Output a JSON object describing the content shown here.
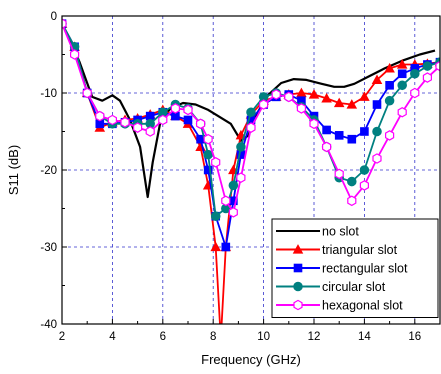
{
  "chart_data": {
    "type": "line",
    "title": "",
    "xlabel": "Frequency (GHz)",
    "ylabel": "S11 (dB)",
    "xlim": [
      2,
      17
    ],
    "ylim": [
      -40,
      0
    ],
    "xticks": [
      2,
      4,
      6,
      8,
      10,
      12,
      14,
      16
    ],
    "yticks": [
      0,
      -10,
      -20,
      -30,
      -40
    ],
    "grid": "dashed blue, vertical at each major x tick, horizontal at each major y tick",
    "legend_position": "bottom-right",
    "series": [
      {
        "name": "no slot",
        "color": "#000000",
        "marker": "none",
        "points": [
          [
            2,
            -1
          ],
          [
            2.3,
            -3
          ],
          [
            2.7,
            -6
          ],
          [
            3.2,
            -10.5
          ],
          [
            3.6,
            -11
          ],
          [
            4,
            -10.3
          ],
          [
            4.3,
            -11
          ],
          [
            4.7,
            -13.5
          ],
          [
            5.1,
            -17
          ],
          [
            5.4,
            -23.5
          ],
          [
            5.6,
            -19
          ],
          [
            5.9,
            -13.8
          ],
          [
            6.3,
            -12
          ],
          [
            6.8,
            -11.3
          ],
          [
            7.3,
            -11.5
          ],
          [
            7.8,
            -12.2
          ],
          [
            8.2,
            -13
          ],
          [
            8.7,
            -14
          ],
          [
            9.1,
            -16.2
          ],
          [
            9.4,
            -15.5
          ],
          [
            9.8,
            -12.3
          ],
          [
            10.2,
            -10.2
          ],
          [
            10.7,
            -8.7
          ],
          [
            11.2,
            -8.2
          ],
          [
            11.7,
            -8.3
          ],
          [
            12.3,
            -8.8
          ],
          [
            12.8,
            -9.2
          ],
          [
            13.2,
            -9.2
          ],
          [
            13.6,
            -8.8
          ],
          [
            14.2,
            -7.8
          ],
          [
            14.8,
            -6.8
          ],
          [
            15.5,
            -5.8
          ],
          [
            16.2,
            -5.0
          ],
          [
            16.8,
            -4.5
          ]
        ]
      },
      {
        "name": "triangular slot",
        "color": "#ff0000",
        "marker": "triangle",
        "points": [
          [
            2,
            -1
          ],
          [
            2.5,
            -4
          ],
          [
            3,
            -10
          ],
          [
            3.5,
            -14.5
          ],
          [
            4,
            -13.8
          ],
          [
            4.5,
            -13.5
          ],
          [
            5,
            -13.3
          ],
          [
            5.5,
            -12.8
          ],
          [
            6,
            -12.2
          ],
          [
            6.5,
            -13
          ],
          [
            7,
            -14
          ],
          [
            7.5,
            -17
          ],
          [
            7.8,
            -22
          ],
          [
            8.1,
            -30
          ],
          [
            8.3,
            -42
          ],
          [
            8.5,
            -30
          ],
          [
            8.8,
            -20
          ],
          [
            9.1,
            -15.5
          ],
          [
            9.5,
            -12.8
          ],
          [
            10,
            -11
          ],
          [
            10.5,
            -10.5
          ],
          [
            11,
            -10.2
          ],
          [
            11.5,
            -10
          ],
          [
            12,
            -10.2
          ],
          [
            12.5,
            -10.7
          ],
          [
            13,
            -11.3
          ],
          [
            13.5,
            -11.5
          ],
          [
            14,
            -10.5
          ],
          [
            14.5,
            -8.3
          ],
          [
            15,
            -6.8
          ],
          [
            15.5,
            -6.3
          ],
          [
            16,
            -6.3
          ],
          [
            16.5,
            -6.2
          ],
          [
            17,
            -6
          ]
        ]
      },
      {
        "name": "rectangular slot",
        "color": "#0000ff",
        "marker": "square",
        "points": [
          [
            2,
            -1
          ],
          [
            2.5,
            -4
          ],
          [
            3,
            -10
          ],
          [
            3.5,
            -14
          ],
          [
            4,
            -14
          ],
          [
            4.5,
            -13.8
          ],
          [
            5,
            -13.5
          ],
          [
            5.5,
            -13
          ],
          [
            6,
            -12.5
          ],
          [
            6.5,
            -13
          ],
          [
            7,
            -13.5
          ],
          [
            7.5,
            -16
          ],
          [
            7.8,
            -20
          ],
          [
            8.1,
            -26
          ],
          [
            8.5,
            -30
          ],
          [
            8.8,
            -24
          ],
          [
            9.1,
            -18
          ],
          [
            9.5,
            -13.5
          ],
          [
            10,
            -11.5
          ],
          [
            10.5,
            -10.5
          ],
          [
            11,
            -10.2
          ],
          [
            11.5,
            -11
          ],
          [
            12,
            -13
          ],
          [
            12.5,
            -14.8
          ],
          [
            13,
            -15.5
          ],
          [
            13.5,
            -16
          ],
          [
            14,
            -15
          ],
          [
            14.5,
            -11.5
          ],
          [
            15,
            -9
          ],
          [
            15.5,
            -7.5
          ],
          [
            16,
            -6.8
          ],
          [
            16.5,
            -6.3
          ],
          [
            17,
            -6
          ]
        ]
      },
      {
        "name": "circular slot",
        "color": "#008080",
        "marker": "circle",
        "points": [
          [
            2,
            -1
          ],
          [
            2.5,
            -4
          ],
          [
            3,
            -10
          ],
          [
            3.5,
            -13
          ],
          [
            4,
            -14
          ],
          [
            4.5,
            -14
          ],
          [
            5,
            -14
          ],
          [
            5.5,
            -14
          ],
          [
            6,
            -12.5
          ],
          [
            6.5,
            -11.5
          ],
          [
            7,
            -12
          ],
          [
            7.5,
            -14
          ],
          [
            7.8,
            -18
          ],
          [
            8.1,
            -26
          ],
          [
            8.5,
            -25
          ],
          [
            8.8,
            -22
          ],
          [
            9.1,
            -17
          ],
          [
            9.5,
            -12.5
          ],
          [
            10,
            -10.5
          ],
          [
            10.5,
            -10
          ],
          [
            11,
            -10.5
          ],
          [
            11.5,
            -11.8
          ],
          [
            12,
            -13.5
          ],
          [
            12.5,
            -17
          ],
          [
            13,
            -21
          ],
          [
            13.5,
            -21.5
          ],
          [
            14,
            -20
          ],
          [
            14.5,
            -15
          ],
          [
            15,
            -11
          ],
          [
            15.5,
            -9
          ],
          [
            16,
            -7.5
          ],
          [
            16.5,
            -6.5
          ],
          [
            17,
            -6
          ]
        ]
      },
      {
        "name": "hexagonal slot",
        "color": "#ff00ff",
        "marker": "hexagon",
        "points": [
          [
            2,
            -1
          ],
          [
            2.5,
            -5
          ],
          [
            3,
            -10
          ],
          [
            3.5,
            -13
          ],
          [
            4,
            -13.5
          ],
          [
            4.5,
            -13.8
          ],
          [
            5,
            -14.5
          ],
          [
            5.5,
            -15
          ],
          [
            6,
            -13.5
          ],
          [
            6.5,
            -12
          ],
          [
            7,
            -12.2
          ],
          [
            7.5,
            -14
          ],
          [
            7.8,
            -16
          ],
          [
            8.1,
            -19
          ],
          [
            8.5,
            -24
          ],
          [
            8.8,
            -25.5
          ],
          [
            9.1,
            -21
          ],
          [
            9.5,
            -14.5
          ],
          [
            10,
            -11.5
          ],
          [
            10.5,
            -10.2
          ],
          [
            11,
            -10.5
          ],
          [
            11.5,
            -12
          ],
          [
            12,
            -14
          ],
          [
            12.5,
            -17
          ],
          [
            13,
            -20.5
          ],
          [
            13.5,
            -24
          ],
          [
            14,
            -22
          ],
          [
            14.5,
            -18.5
          ],
          [
            15,
            -15.5
          ],
          [
            15.5,
            -12.5
          ],
          [
            16,
            -10
          ],
          [
            16.5,
            -8
          ],
          [
            17,
            -6.5
          ]
        ]
      }
    ]
  }
}
